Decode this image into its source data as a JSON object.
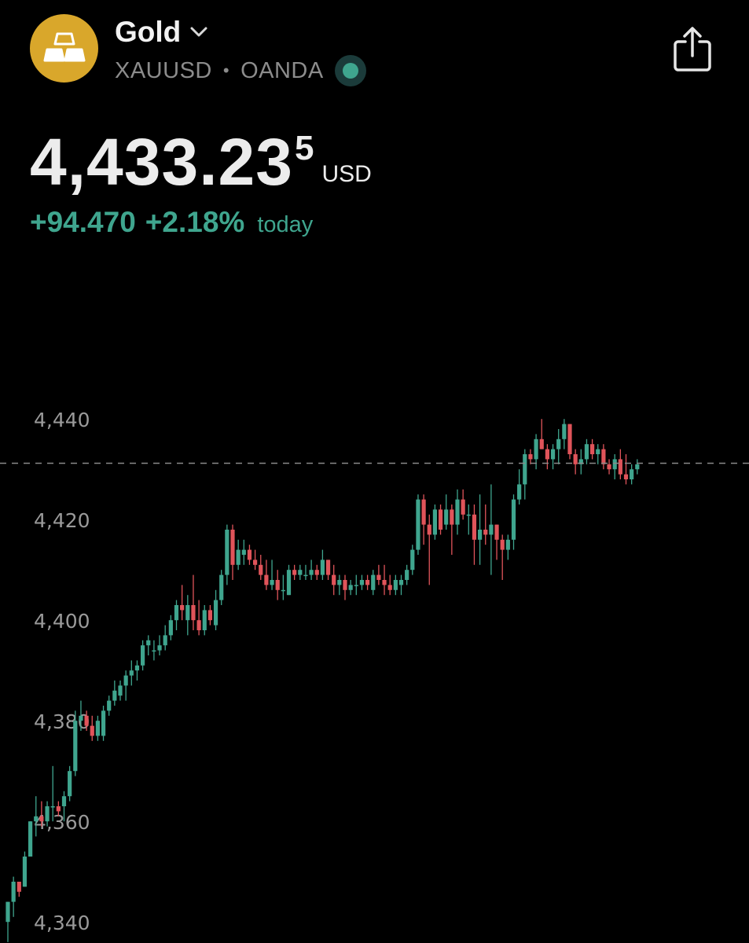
{
  "header": {
    "title": "Gold",
    "symbol": "XAUUSD",
    "exchange": "OANDA",
    "separator": "•"
  },
  "price": {
    "main": "4,433.23",
    "superscript": "5",
    "currency": "USD"
  },
  "change": {
    "absolute": "+94.470",
    "percent": "+2.18%",
    "period": "today"
  },
  "colors": {
    "up": "#3fa58e",
    "down": "#e0545a",
    "logo": "#d9a72b",
    "axis_text": "#9a9a9a"
  },
  "icons": {
    "logo": "gold-bars-icon",
    "dropdown": "chevron-down-icon",
    "status": "market-open-status-icon",
    "share": "share-icon"
  },
  "chart_data": {
    "type": "candlestick",
    "current_price_line": 4433.2,
    "ylim": [
      4340,
      4445
    ],
    "y_ticks": [
      {
        "value": 4440,
        "label": "4,440"
      },
      {
        "value": 4420,
        "label": "4,420"
      },
      {
        "value": 4400,
        "label": "4,400"
      },
      {
        "value": 4380,
        "label": "4,380"
      },
      {
        "value": 4360,
        "label": "4,360"
      },
      {
        "value": 4340,
        "label": "4,340"
      }
    ],
    "candles": [
      [
        4342,
        4346,
        4338,
        4346
      ],
      [
        4346,
        4351,
        4343,
        4350
      ],
      [
        4350,
        4350,
        4347,
        4348
      ],
      [
        4349,
        4356,
        4349,
        4355
      ],
      [
        4355,
        4362,
        4355,
        4362
      ],
      [
        4362,
        4367,
        4359,
        4363
      ],
      [
        4363,
        4366,
        4361,
        4362
      ],
      [
        4362,
        4366,
        4361,
        4365
      ],
      [
        4365,
        4373,
        4362,
        4365
      ],
      [
        4365,
        4366,
        4363,
        4364
      ],
      [
        4365,
        4368,
        4362,
        4367
      ],
      [
        4367,
        4373,
        4366,
        4372
      ],
      [
        4372,
        4384,
        4371,
        4382
      ],
      [
        4382,
        4386,
        4380,
        4383
      ],
      [
        4383,
        4384,
        4380,
        4381
      ],
      [
        4381,
        4383,
        4378,
        4379
      ],
      [
        4379,
        4383,
        4378,
        4382
      ],
      [
        4379,
        4385,
        4378,
        4384
      ],
      [
        4384,
        4387,
        4383,
        4386
      ],
      [
        4386,
        4390,
        4385,
        4388
      ],
      [
        4387,
        4390,
        4386,
        4389
      ],
      [
        4389,
        4392,
        4386,
        4391
      ],
      [
        4391,
        4394,
        4389,
        4392
      ],
      [
        4392,
        4394,
        4390,
        4393
      ],
      [
        4393,
        4398,
        4392,
        4397
      ],
      [
        4397,
        4399,
        4395,
        4398
      ],
      [
        4396,
        4398,
        4394,
        4396
      ],
      [
        4396,
        4399,
        4395,
        4397
      ],
      [
        4397,
        4401,
        4396,
        4399
      ],
      [
        4399,
        4403,
        4398,
        4402
      ],
      [
        4402,
        4406,
        4400,
        4405
      ],
      [
        4405,
        4409,
        4402,
        4404
      ],
      [
        4402,
        4407,
        4399,
        4405
      ],
      [
        4405,
        4411,
        4400,
        4402
      ],
      [
        4402,
        4406,
        4399,
        4400
      ],
      [
        4400,
        4405,
        4399,
        4404
      ],
      [
        4404,
        4405,
        4401,
        4402
      ],
      [
        4401,
        4408,
        4400,
        4406
      ],
      [
        4406,
        4412,
        4405,
        4411
      ],
      [
        4411,
        4421,
        4409,
        4420
      ],
      [
        4420,
        4421,
        4410,
        4413
      ],
      [
        4413,
        4418,
        4412,
        4416
      ],
      [
        4415,
        4418,
        4413,
        4416
      ],
      [
        4416,
        4417,
        4413,
        4414
      ],
      [
        4414,
        4416,
        4412,
        4413
      ],
      [
        4413,
        4415,
        4410,
        4411
      ],
      [
        4411,
        4414,
        4408,
        4409
      ],
      [
        4409,
        4414,
        4408,
        4410
      ],
      [
        4410,
        4412,
        4406,
        4408
      ],
      [
        4408,
        4411,
        4406,
        4408
      ],
      [
        4407,
        4413,
        4407,
        4412
      ],
      [
        4412,
        4413,
        4410,
        4411
      ],
      [
        4411,
        4413,
        4410,
        4412
      ],
      [
        4411,
        4413,
        4410,
        4411
      ],
      [
        4411,
        4414,
        4410,
        4412
      ],
      [
        4412,
        4413,
        4410,
        4411
      ],
      [
        4411,
        4416,
        4410,
        4414
      ],
      [
        4414,
        4414,
        4410,
        4411
      ],
      [
        4411,
        4413,
        4407,
        4409
      ],
      [
        4409,
        4411,
        4407,
        4410
      ],
      [
        4410,
        4411,
        4406,
        4408
      ],
      [
        4408,
        4410,
        4407,
        4409
      ],
      [
        4409,
        4411,
        4407,
        4409
      ],
      [
        4409,
        4411,
        4408,
        4410
      ],
      [
        4410,
        4411,
        4408,
        4409
      ],
      [
        4408,
        4412,
        4407,
        4411
      ],
      [
        4411,
        4413,
        4409,
        4410
      ],
      [
        4410,
        4413,
        4407,
        4409
      ],
      [
        4409,
        4411,
        4407,
        4408
      ],
      [
        4408,
        4411,
        4407,
        4410
      ],
      [
        4409,
        4411,
        4407,
        4410
      ],
      [
        4410,
        4413,
        4409,
        4412
      ],
      [
        4412,
        4417,
        4411,
        4416
      ],
      [
        4416,
        4427,
        4415,
        4426
      ],
      [
        4426,
        4427,
        4417,
        4421
      ],
      [
        4421,
        4423,
        4409,
        4419
      ],
      [
        4419,
        4425,
        4418,
        4424
      ],
      [
        4424,
        4425,
        4419,
        4420
      ],
      [
        4421,
        4427,
        4420,
        4424
      ],
      [
        4424,
        4425,
        4415,
        4421
      ],
      [
        4421,
        4428,
        4419,
        4426
      ],
      [
        4426,
        4428,
        4422,
        4423
      ],
      [
        4423,
        4425,
        4419,
        4423
      ],
      [
        4423,
        4425,
        4413,
        4418
      ],
      [
        4418,
        4427,
        4413,
        4420
      ],
      [
        4420,
        4425,
        4417,
        4419
      ],
      [
        4419,
        4429,
        4411,
        4421
      ],
      [
        4421,
        4421,
        4414,
        4418
      ],
      [
        4418,
        4419,
        4410,
        4416
      ],
      [
        4416,
        4419,
        4414,
        4418
      ],
      [
        4418,
        4427,
        4416,
        4426
      ],
      [
        4426,
        4432,
        4425,
        4429
      ],
      [
        4429,
        4436,
        4426,
        4435
      ],
      [
        4435,
        4436,
        4433,
        4434
      ],
      [
        4434,
        4439,
        4432,
        4438
      ],
      [
        4438,
        4442,
        4436,
        4436
      ],
      [
        4436,
        4437,
        4432,
        4434
      ],
      [
        4434,
        4437,
        4432,
        4436
      ],
      [
        4436,
        4440,
        4433,
        4438
      ],
      [
        4438,
        4442,
        4436,
        4441
      ],
      [
        4441,
        4441,
        4434,
        4435
      ],
      [
        4435,
        4436,
        4431,
        4433
      ],
      [
        4433,
        4436,
        4431,
        4434
      ],
      [
        4434,
        4438,
        4433,
        4437
      ],
      [
        4437,
        4438,
        4434,
        4435
      ],
      [
        4435,
        4437,
        4433,
        4436
      ],
      [
        4436,
        4437,
        4432,
        4433
      ],
      [
        4433,
        4434,
        4431,
        4432
      ],
      [
        4432,
        4435,
        4430,
        4434
      ],
      [
        4434,
        4436,
        4430,
        4431
      ],
      [
        4431,
        4435,
        4429,
        4430
      ],
      [
        4430,
        4433,
        4429,
        4432
      ],
      [
        4432,
        4434,
        4431,
        4433
      ]
    ]
  }
}
